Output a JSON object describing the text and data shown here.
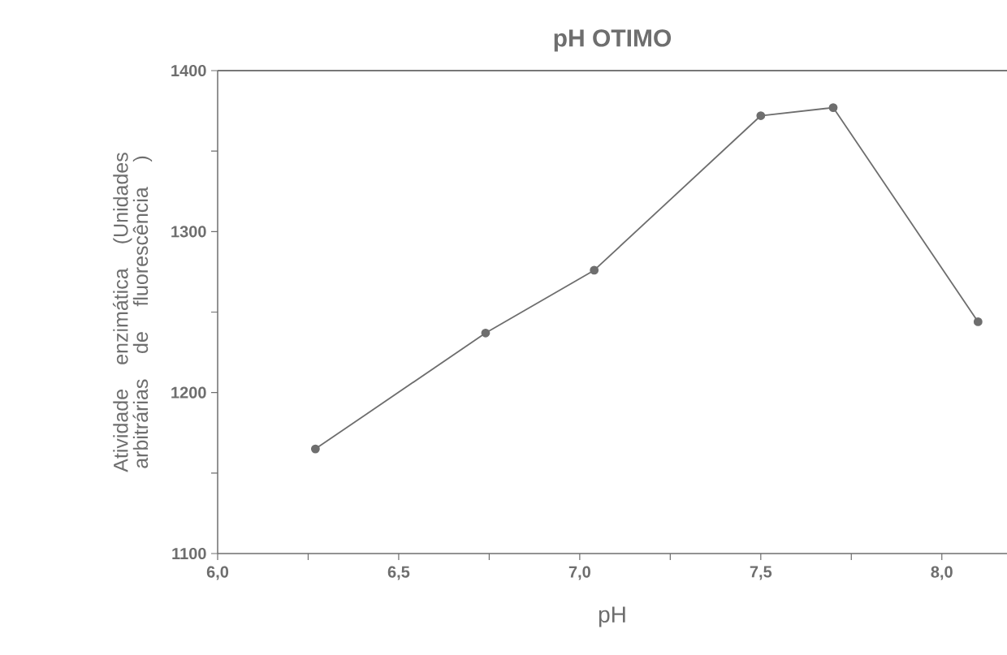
{
  "chart_data": {
    "type": "line",
    "title": "pH OTIMO",
    "xlabel": "pH",
    "ylabel": "Atividade enzimática (Unidades arbitrárias de fluorescência )",
    "x": [
      6.27,
      6.74,
      7.04,
      7.5,
      7.7,
      8.1
    ],
    "series": [
      {
        "color": "#6e6e6e",
        "values": [
          1165,
          1237,
          1276,
          1372,
          1377,
          1244
        ]
      }
    ],
    "xlim": [
      6.0,
      8.18
    ],
    "xticks": [
      {
        "value": 6.0,
        "label": "6,0"
      },
      {
        "value": 6.25,
        "label": null
      },
      {
        "value": 6.5,
        "label": "6,5"
      },
      {
        "value": 6.75,
        "label": null
      },
      {
        "value": 7.0,
        "label": "7,0"
      },
      {
        "value": 7.25,
        "label": null
      },
      {
        "value": 7.5,
        "label": "7,5"
      },
      {
        "value": 7.75,
        "label": null
      },
      {
        "value": 8.0,
        "label": "8,0"
      }
    ],
    "ylim": [
      1100,
      1400
    ],
    "yticks": [
      1100,
      {
        "value": 1150,
        "label": null
      },
      1200,
      {
        "value": 1250,
        "label": null
      },
      1300,
      {
        "value": 1350,
        "label": null
      },
      1400
    ],
    "grid": false,
    "marker": "circle",
    "line_style": "solid"
  }
}
